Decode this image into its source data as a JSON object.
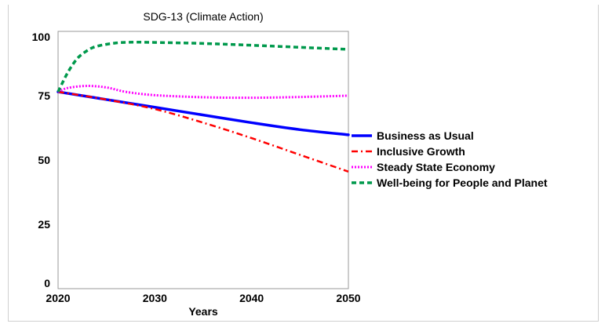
{
  "chart_data": {
    "type": "line",
    "title": "SDG-13 (Climate Action)",
    "xlabel": "Years",
    "ylabel": "",
    "xlim": [
      2020,
      2050
    ],
    "ylim": [
      0,
      100
    ],
    "x_ticks": [
      "2020",
      "2030",
      "2040",
      "2050"
    ],
    "y_ticks": [
      "0",
      "25",
      "50",
      "75",
      "100"
    ],
    "grid": false,
    "legend_position": "right",
    "series": [
      {
        "name": "Business as Usual",
        "color": "#0000ff",
        "style": "solid",
        "x": [
          2020,
          2025,
          2030,
          2035,
          2040,
          2045,
          2050
        ],
        "y": [
          76.5,
          73.5,
          70.5,
          67.5,
          64.5,
          61.8,
          59.8
        ]
      },
      {
        "name": "Inclusive Growth",
        "color": "#ff0000",
        "style": "dashdot",
        "x": [
          2020,
          2025,
          2030,
          2035,
          2040,
          2045,
          2050
        ],
        "y": [
          76.5,
          73.5,
          69.8,
          64.5,
          58.5,
          52.0,
          45.5
        ]
      },
      {
        "name": "Steady State Economy",
        "color": "#ff00ff",
        "style": "dotted",
        "x": [
          2020,
          2021,
          2023,
          2025,
          2027,
          2030,
          2035,
          2040,
          2045,
          2050
        ],
        "y": [
          76.5,
          78.0,
          78.8,
          78.2,
          76.5,
          75.2,
          74.4,
          74.2,
          74.5,
          75.0
        ]
      },
      {
        "name": "Well-being for People and Planet",
        "color": "#00994c",
        "style": "dashed",
        "x": [
          2020,
          2021,
          2022,
          2023,
          2024,
          2026,
          2028,
          2030,
          2035,
          2040,
          2045,
          2050
        ],
        "y": [
          76.5,
          84.0,
          89.5,
          92.5,
          94.2,
          95.5,
          95.8,
          95.7,
          95.3,
          94.6,
          93.8,
          93.0
        ]
      }
    ]
  }
}
